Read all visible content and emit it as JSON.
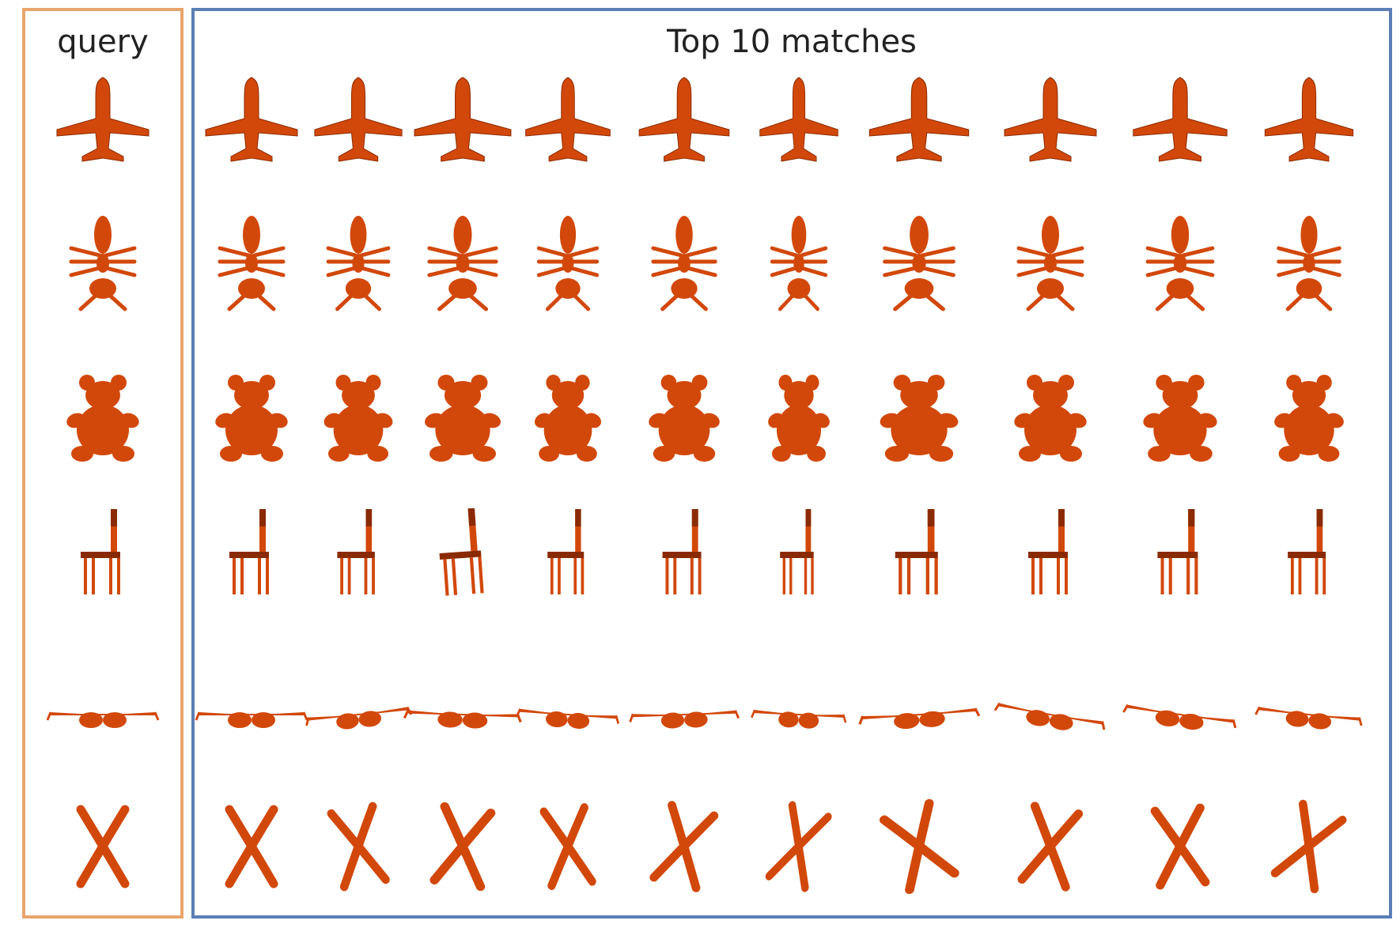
{
  "query_panel": {
    "label": "query",
    "border_color": "#e8a56c"
  },
  "results_panel": {
    "label": "Top 10 matches",
    "border_color": "#5b7fb5"
  },
  "shape_color": "#d2480a",
  "shape_edge_color": "#8a2a00",
  "rows": [
    {
      "category": "airplane",
      "icon": "airplane-icon",
      "matches": 10
    },
    {
      "category": "ant",
      "icon": "ant-icon",
      "matches": 10
    },
    {
      "category": "teddy-bear",
      "icon": "teddy-bear-icon",
      "matches": 10
    },
    {
      "category": "chair",
      "icon": "chair-icon",
      "matches": 10
    },
    {
      "category": "glasses",
      "icon": "glasses-icon",
      "matches": 10
    },
    {
      "category": "pliers",
      "icon": "pliers-icon",
      "matches": 10
    }
  ]
}
